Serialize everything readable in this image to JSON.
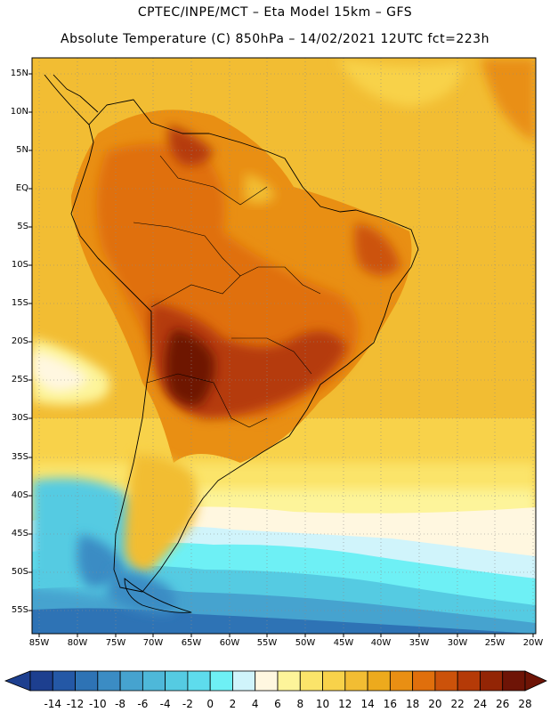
{
  "header": {
    "line1": "CPTEC/INPE/MCT –  Eta Model 15km – GFS",
    "line2": "Absolute Temperature (C) 850hPa – 14/02/2021 12UTC fct=223h"
  },
  "map": {
    "lat_labels": [
      "15N",
      "10N",
      "5N",
      "EQ",
      "5S",
      "10S",
      "15S",
      "20S",
      "25S",
      "30S",
      "35S",
      "40S",
      "45S",
      "50S",
      "55S"
    ],
    "lon_labels": [
      "85W",
      "80W",
      "75W",
      "70W",
      "65W",
      "60W",
      "55W",
      "50W",
      "45W",
      "40W",
      "35W",
      "30W",
      "25W",
      "20W"
    ]
  },
  "colorbar": {
    "labels": [
      "-14",
      "-12",
      "-10",
      "-8",
      "-6",
      "-4",
      "-2",
      "0",
      "2",
      "4",
      "6",
      "8",
      "10",
      "12",
      "14",
      "16",
      "18",
      "20",
      "22",
      "24",
      "26",
      "28"
    ],
    "colors": [
      "#1d3f8f",
      "#2458a6",
      "#2e73b5",
      "#3b8cc4",
      "#46a3cf",
      "#4eb8d9",
      "#55cbe2",
      "#5edced",
      "#6ef0f5",
      "#d0f4fb",
      "#fff7e0",
      "#fdf49a",
      "#fbe46a",
      "#f8d24a",
      "#f2bd33",
      "#edaa1d",
      "#e98f13",
      "#e06f0c",
      "#cc520a",
      "#b53a07",
      "#932505",
      "#6e1406"
    ],
    "low_color": "#1d3f8f",
    "high_color": "#6e1406"
  }
}
